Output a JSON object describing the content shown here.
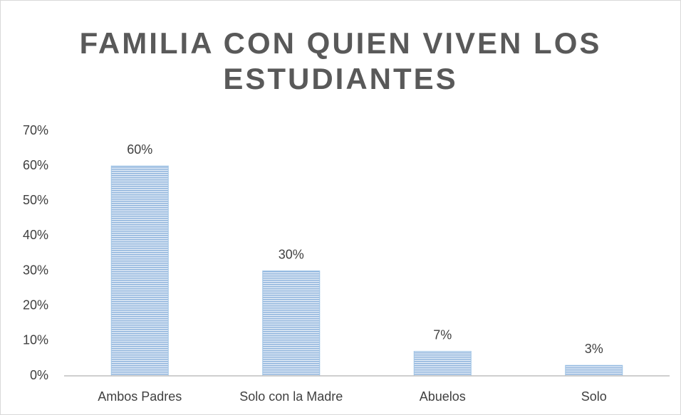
{
  "chart_data": {
    "type": "bar",
    "title": "FAMILIA CON QUIEN VIVEN LOS ESTUDIANTES",
    "categories": [
      "Ambos Padres",
      "Solo con la Madre",
      "Abuelos",
      "Solo"
    ],
    "values": [
      60,
      30,
      7,
      3
    ],
    "value_labels": [
      "60%",
      "30%",
      "7%",
      "3%"
    ],
    "color": "#9dc3e6",
    "ylim": [
      0,
      70
    ],
    "yticks": [
      {
        "value": 0,
        "label": "0%"
      },
      {
        "value": 10,
        "label": "10%"
      },
      {
        "value": 20,
        "label": "20%"
      },
      {
        "value": 30,
        "label": "30%"
      },
      {
        "value": 40,
        "label": "40%"
      },
      {
        "value": 50,
        "label": "50%"
      },
      {
        "value": 60,
        "label": "60%"
      },
      {
        "value": 70,
        "label": "70%"
      }
    ],
    "grid": false
  }
}
